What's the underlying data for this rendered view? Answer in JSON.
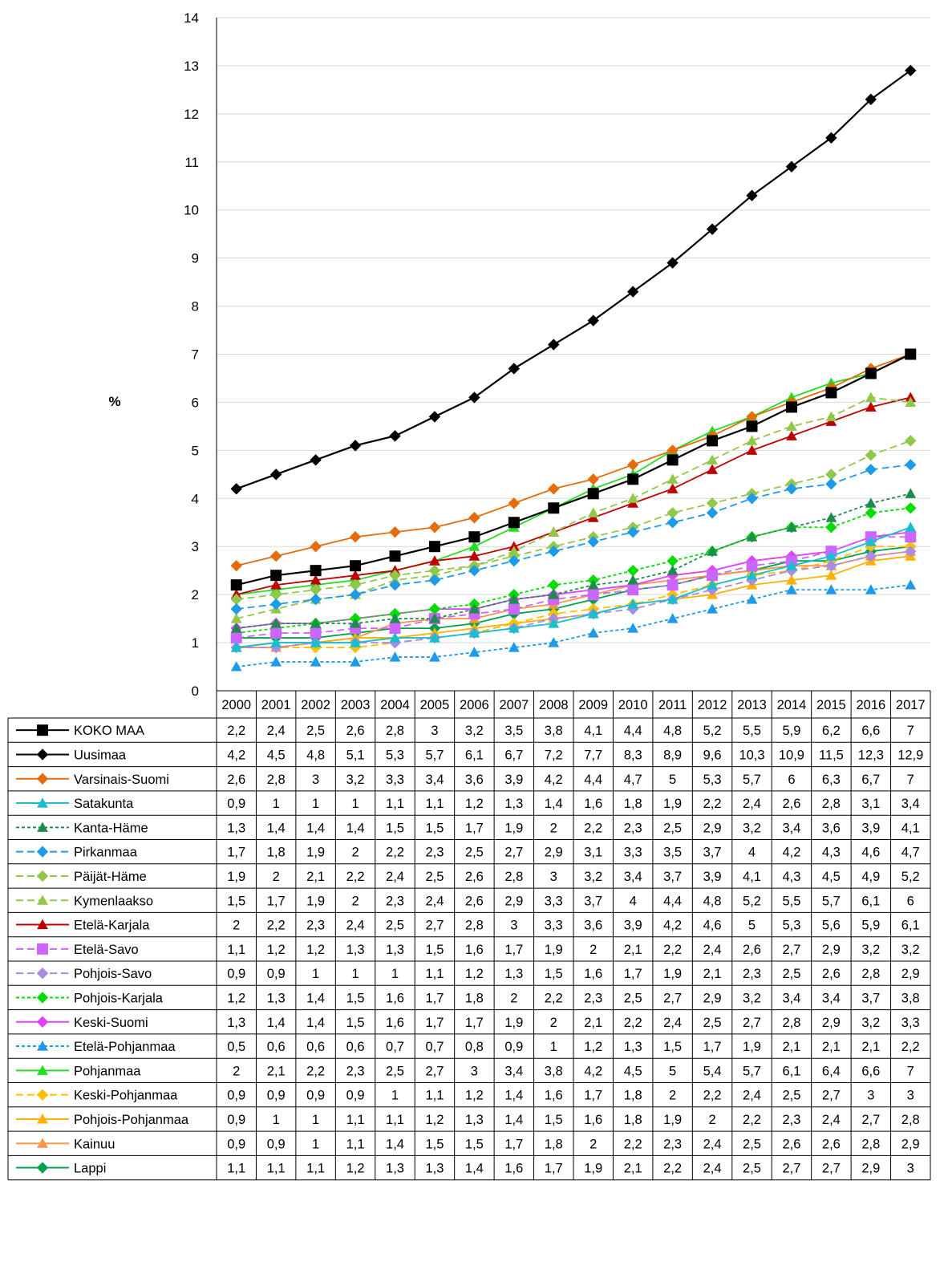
{
  "chart_data": {
    "type": "line",
    "ylabel": "%",
    "ylim": [
      0,
      14
    ],
    "yticks": [
      0,
      1,
      2,
      3,
      4,
      5,
      6,
      7,
      8,
      9,
      10,
      11,
      12,
      13,
      14
    ],
    "grid": "horizontal",
    "legend": "data table below chart",
    "categories": [
      "2000",
      "2001",
      "2002",
      "2003",
      "2004",
      "2005",
      "2006",
      "2007",
      "2008",
      "2009",
      "2010",
      "2011",
      "2012",
      "2013",
      "2014",
      "2015",
      "2016",
      "2017"
    ],
    "series": [
      {
        "name": "KOKO MAA",
        "color": "#000000",
        "dash": "solid",
        "marker": "square",
        "values": [
          2.2,
          2.4,
          2.5,
          2.6,
          2.8,
          3,
          3.2,
          3.5,
          3.8,
          4.1,
          4.4,
          4.8,
          5.2,
          5.5,
          5.9,
          6.2,
          6.6,
          7
        ],
        "labels": [
          "2,2",
          "2,4",
          "2,5",
          "2,6",
          "2,8",
          "3",
          "3,2",
          "3,5",
          "3,8",
          "4,1",
          "4,4",
          "4,8",
          "5,2",
          "5,5",
          "5,9",
          "6,2",
          "6,6",
          "7"
        ]
      },
      {
        "name": "Uusimaa",
        "color": "#000000",
        "dash": "solid",
        "marker": "diamond",
        "values": [
          4.2,
          4.5,
          4.8,
          5.1,
          5.3,
          5.7,
          6.1,
          6.7,
          7.2,
          7.7,
          8.3,
          8.9,
          9.6,
          10.3,
          10.9,
          11.5,
          12.3,
          12.9
        ],
        "labels": [
          "4,2",
          "4,5",
          "4,8",
          "5,1",
          "5,3",
          "5,7",
          "6,1",
          "6,7",
          "7,2",
          "7,7",
          "8,3",
          "8,9",
          "9,6",
          "10,3",
          "10,9",
          "11,5",
          "12,3",
          "12,9"
        ]
      },
      {
        "name": "Varsinais-Suomi",
        "color": "#E46C0A",
        "dash": "solid",
        "marker": "diamond",
        "values": [
          2.6,
          2.8,
          3,
          3.2,
          3.3,
          3.4,
          3.6,
          3.9,
          4.2,
          4.4,
          4.7,
          5,
          5.3,
          5.7,
          6,
          6.3,
          6.7,
          7
        ],
        "labels": [
          "2,6",
          "2,8",
          "3",
          "3,2",
          "3,3",
          "3,4",
          "3,6",
          "3,9",
          "4,2",
          "4,4",
          "4,7",
          "5",
          "5,3",
          "5,7",
          "6",
          "6,3",
          "6,7",
          "7"
        ]
      },
      {
        "name": "Satakunta",
        "color": "#17BECF",
        "dash": "solid",
        "marker": "triangle",
        "values": [
          0.9,
          1,
          1,
          1,
          1.1,
          1.1,
          1.2,
          1.3,
          1.4,
          1.6,
          1.8,
          1.9,
          2.2,
          2.4,
          2.6,
          2.8,
          3.1,
          3.4
        ],
        "labels": [
          "0,9",
          "1",
          "1",
          "1",
          "1,1",
          "1,1",
          "1,2",
          "1,3",
          "1,4",
          "1,6",
          "1,8",
          "1,9",
          "2,2",
          "2,4",
          "2,6",
          "2,8",
          "3,1",
          "3,4"
        ]
      },
      {
        "name": "Kanta-Häme",
        "color": "#1E8C4E",
        "dash": "dotted",
        "marker": "triangle",
        "values": [
          1.3,
          1.4,
          1.4,
          1.4,
          1.5,
          1.5,
          1.7,
          1.9,
          2,
          2.2,
          2.3,
          2.5,
          2.9,
          3.2,
          3.4,
          3.6,
          3.9,
          4.1
        ],
        "labels": [
          "1,3",
          "1,4",
          "1,4",
          "1,4",
          "1,5",
          "1,5",
          "1,7",
          "1,9",
          "2",
          "2,2",
          "2,3",
          "2,5",
          "2,9",
          "3,2",
          "3,4",
          "3,6",
          "3,9",
          "4,1"
        ]
      },
      {
        "name": "Pirkanmaa",
        "color": "#1E9BE8",
        "dash": "dashed",
        "marker": "diamond",
        "values": [
          1.7,
          1.8,
          1.9,
          2,
          2.2,
          2.3,
          2.5,
          2.7,
          2.9,
          3.1,
          3.3,
          3.5,
          3.7,
          4,
          4.2,
          4.3,
          4.6,
          4.7
        ],
        "labels": [
          "1,7",
          "1,8",
          "1,9",
          "2",
          "2,2",
          "2,3",
          "2,5",
          "2,7",
          "2,9",
          "3,1",
          "3,3",
          "3,5",
          "3,7",
          "4",
          "4,2",
          "4,3",
          "4,6",
          "4,7"
        ]
      },
      {
        "name": "Päijät-Häme",
        "color": "#92C84A",
        "dash": "dashed",
        "marker": "diamond",
        "values": [
          1.9,
          2,
          2.1,
          2.2,
          2.4,
          2.5,
          2.6,
          2.8,
          3,
          3.2,
          3.4,
          3.7,
          3.9,
          4.1,
          4.3,
          4.5,
          4.9,
          5.2
        ],
        "labels": [
          "1,9",
          "2",
          "2,1",
          "2,2",
          "2,4",
          "2,5",
          "2,6",
          "2,8",
          "3",
          "3,2",
          "3,4",
          "3,7",
          "3,9",
          "4,1",
          "4,3",
          "4,5",
          "4,9",
          "5,2"
        ]
      },
      {
        "name": "Kymenlaakso",
        "color": "#92C84A",
        "dash": "dashed",
        "marker": "triangle",
        "values": [
          1.5,
          1.7,
          1.9,
          2,
          2.3,
          2.4,
          2.6,
          2.9,
          3.3,
          3.7,
          4,
          4.4,
          4.8,
          5.2,
          5.5,
          5.7,
          6.1,
          6
        ],
        "labels": [
          "1,5",
          "1,7",
          "1,9",
          "2",
          "2,3",
          "2,4",
          "2,6",
          "2,9",
          "3,3",
          "3,7",
          "4",
          "4,4",
          "4,8",
          "5,2",
          "5,5",
          "5,7",
          "6,1",
          "6"
        ]
      },
      {
        "name": "Etelä-Karjala",
        "color": "#C00000",
        "dash": "solid",
        "marker": "triangle",
        "values": [
          2,
          2.2,
          2.3,
          2.4,
          2.5,
          2.7,
          2.8,
          3,
          3.3,
          3.6,
          3.9,
          4.2,
          4.6,
          5,
          5.3,
          5.6,
          5.9,
          6.1
        ],
        "labels": [
          "2",
          "2,2",
          "2,3",
          "2,4",
          "2,5",
          "2,7",
          "2,8",
          "3",
          "3,3",
          "3,6",
          "3,9",
          "4,2",
          "4,6",
          "5",
          "5,3",
          "5,6",
          "5,9",
          "6,1"
        ]
      },
      {
        "name": "Etelä-Savo",
        "color": "#CC66FF",
        "dash": "dashed",
        "marker": "square",
        "values": [
          1.1,
          1.2,
          1.2,
          1.3,
          1.3,
          1.5,
          1.6,
          1.7,
          1.9,
          2,
          2.1,
          2.2,
          2.4,
          2.6,
          2.7,
          2.9,
          3.2,
          3.2
        ],
        "labels": [
          "1,1",
          "1,2",
          "1,2",
          "1,3",
          "1,3",
          "1,5",
          "1,6",
          "1,7",
          "1,9",
          "2",
          "2,1",
          "2,2",
          "2,4",
          "2,6",
          "2,7",
          "2,9",
          "3,2",
          "3,2"
        ]
      },
      {
        "name": " Pohjois-Savo",
        "color": "#A98BE0",
        "dash": "dashed",
        "marker": "diamond",
        "values": [
          0.9,
          0.9,
          1,
          1,
          1,
          1.1,
          1.2,
          1.3,
          1.5,
          1.6,
          1.7,
          1.9,
          2.1,
          2.3,
          2.5,
          2.6,
          2.8,
          2.9
        ],
        "labels": [
          "0,9",
          "0,9",
          "1",
          "1",
          "1",
          "1,1",
          "1,2",
          "1,3",
          "1,5",
          "1,6",
          "1,7",
          "1,9",
          "2,1",
          "2,3",
          "2,5",
          "2,6",
          "2,8",
          "2,9"
        ]
      },
      {
        "name": "Pohjois-Karjala",
        "color": "#00DD00",
        "dash": "dotted",
        "marker": "diamond",
        "values": [
          1.2,
          1.3,
          1.4,
          1.5,
          1.6,
          1.7,
          1.8,
          2,
          2.2,
          2.3,
          2.5,
          2.7,
          2.9,
          3.2,
          3.4,
          3.4,
          3.7,
          3.8
        ],
        "labels": [
          "1,2",
          "1,3",
          "1,4",
          "1,5",
          "1,6",
          "1,7",
          "1,8",
          "2",
          "2,2",
          "2,3",
          "2,5",
          "2,7",
          "2,9",
          "3,2",
          "3,4",
          "3,4",
          "3,7",
          "3,8"
        ]
      },
      {
        "name": "Keski-Suomi",
        "color": "#E040FB",
        "dash": "solid",
        "marker": "diamond",
        "values": [
          1.3,
          1.4,
          1.4,
          1.5,
          1.6,
          1.7,
          1.7,
          1.9,
          2,
          2.1,
          2.2,
          2.4,
          2.5,
          2.7,
          2.8,
          2.9,
          3.2,
          3.3
        ],
        "labels": [
          "1,3",
          "1,4",
          "1,4",
          "1,5",
          "1,6",
          "1,7",
          "1,7",
          "1,9",
          "2",
          "2,1",
          "2,2",
          "2,4",
          "2,5",
          "2,7",
          "2,8",
          "2,9",
          "3,2",
          "3,3"
        ]
      },
      {
        "name": "Etelä-Pohjanmaa",
        "color": "#1E9BE8",
        "dash": "dotted",
        "marker": "triangle",
        "values": [
          0.5,
          0.6,
          0.6,
          0.6,
          0.7,
          0.7,
          0.8,
          0.9,
          1,
          1.2,
          1.3,
          1.5,
          1.7,
          1.9,
          2.1,
          2.1,
          2.1,
          2.2
        ],
        "labels": [
          "0,5",
          "0,6",
          "0,6",
          "0,6",
          "0,7",
          "0,7",
          "0,8",
          "0,9",
          "1",
          "1,2",
          "1,3",
          "1,5",
          "1,7",
          "1,9",
          "2,1",
          "2,1",
          "2,1",
          "2,2"
        ]
      },
      {
        "name": "Pohjanmaa",
        "color": "#22DD22",
        "dash": "solid",
        "marker": "triangle",
        "values": [
          2,
          2.1,
          2.2,
          2.3,
          2.5,
          2.7,
          3,
          3.4,
          3.8,
          4.2,
          4.5,
          5,
          5.4,
          5.7,
          6.1,
          6.4,
          6.6,
          7
        ],
        "labels": [
          "2",
          "2,1",
          "2,2",
          "2,3",
          "2,5",
          "2,7",
          "3",
          "3,4",
          "3,8",
          "4,2",
          "4,5",
          "5",
          "5,4",
          "5,7",
          "6,1",
          "6,4",
          "6,6",
          "7"
        ]
      },
      {
        "name": "Keski-Pohjanmaa",
        "color": "#FFC000",
        "dash": "dashed",
        "marker": "diamond",
        "values": [
          0.9,
          0.9,
          0.9,
          0.9,
          1,
          1.1,
          1.2,
          1.4,
          1.6,
          1.7,
          1.8,
          2,
          2.2,
          2.4,
          2.5,
          2.7,
          3,
          3
        ],
        "labels": [
          "0,9",
          "0,9",
          "0,9",
          "0,9",
          "1",
          "1,1",
          "1,2",
          "1,4",
          "1,6",
          "1,7",
          "1,8",
          "2",
          "2,2",
          "2,4",
          "2,5",
          "2,7",
          "3",
          "3"
        ]
      },
      {
        "name": "Pohjois-Pohjanmaa",
        "color": "#FFB000",
        "dash": "solid",
        "marker": "triangle",
        "values": [
          0.9,
          1,
          1,
          1.1,
          1.1,
          1.2,
          1.3,
          1.4,
          1.5,
          1.6,
          1.8,
          1.9,
          2,
          2.2,
          2.3,
          2.4,
          2.7,
          2.8
        ],
        "labels": [
          "0,9",
          "1",
          "1",
          "1,1",
          "1,1",
          "1,2",
          "1,3",
          "1,4",
          "1,5",
          "1,6",
          "1,8",
          "1,9",
          "2",
          "2,2",
          "2,3",
          "2,4",
          "2,7",
          "2,8"
        ]
      },
      {
        "name": "Kainuu",
        "color": "#F79646",
        "dash": "solid",
        "marker": "triangle",
        "values": [
          0.9,
          0.9,
          1,
          1.1,
          1.4,
          1.5,
          1.5,
          1.7,
          1.8,
          2,
          2.2,
          2.3,
          2.4,
          2.5,
          2.6,
          2.6,
          2.8,
          2.9
        ],
        "labels": [
          "0,9",
          "0,9",
          "1",
          "1,1",
          "1,4",
          "1,5",
          "1,5",
          "1,7",
          "1,8",
          "2",
          "2,2",
          "2,3",
          "2,4",
          "2,5",
          "2,6",
          "2,6",
          "2,8",
          "2,9"
        ]
      },
      {
        "name": "Lappi",
        "color": "#00A050",
        "dash": "solid",
        "marker": "diamond",
        "values": [
          1.1,
          1.1,
          1.1,
          1.2,
          1.3,
          1.3,
          1.4,
          1.6,
          1.7,
          1.9,
          2.1,
          2.2,
          2.4,
          2.5,
          2.7,
          2.7,
          2.9,
          3
        ],
        "labels": [
          "1,1",
          "1,1",
          "1,1",
          "1,2",
          "1,3",
          "1,3",
          "1,4",
          "1,6",
          "1,7",
          "1,9",
          "2,1",
          "2,2",
          "2,4",
          "2,5",
          "2,7",
          "2,7",
          "2,9",
          "3"
        ]
      }
    ]
  }
}
